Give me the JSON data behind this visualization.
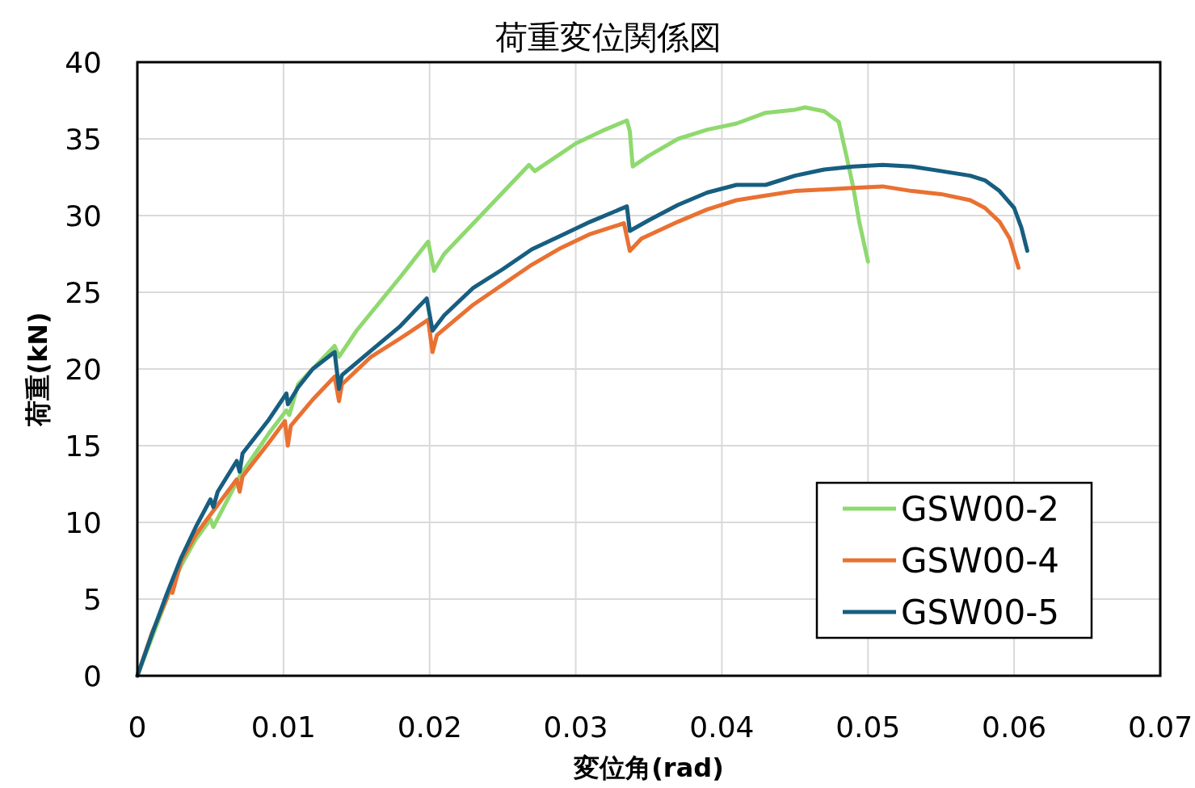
{
  "chart_data": {
    "type": "line",
    "title": "荷重変位関係図",
    "xlabel": "変位角(rad)",
    "ylabel": "荷重(kN)",
    "xlim": [
      0,
      0.07
    ],
    "xticks": [
      0,
      0.01,
      0.02,
      0.03,
      0.04,
      0.05,
      0.06,
      0.07
    ],
    "ylim": [
      0,
      40
    ],
    "yticks": [
      0,
      5,
      10,
      15,
      20,
      25,
      30,
      35,
      40
    ],
    "grid": true,
    "legend": "bottom right",
    "marker": "none",
    "line_style": "solid",
    "series": [
      {
        "name": "GSW00-2",
        "color": "#8fd96f",
        "x": [
          0,
          0.001,
          0.002,
          0.003,
          0.004,
          0.005,
          0.0052,
          0.007,
          0.009,
          0.0102,
          0.0104,
          0.011,
          0.0135,
          0.0138,
          0.015,
          0.018,
          0.0199,
          0.0203,
          0.021,
          0.023,
          0.025,
          0.0268,
          0.0272,
          0.03,
          0.032,
          0.0335,
          0.0337,
          0.0339,
          0.035,
          0.037,
          0.039,
          0.041,
          0.043,
          0.045,
          0.0457,
          0.047,
          0.048,
          0.0485,
          0.049,
          0.0494,
          0.05
        ],
        "values": [
          0,
          2.5,
          5,
          7.2,
          8.9,
          10.2,
          9.7,
          13,
          15.8,
          17.3,
          17,
          19,
          21.5,
          20.8,
          22.5,
          26,
          28.3,
          26.4,
          27.5,
          29.5,
          31.5,
          33.3,
          32.9,
          34.7,
          35.6,
          36.2,
          35.5,
          33.2,
          33.9,
          35,
          35.6,
          36,
          36.7,
          36.9,
          37.05,
          36.8,
          36.1,
          34,
          31.8,
          29.6,
          27
        ]
      },
      {
        "name": "GSW00-4",
        "color": "#e97132",
        "x": [
          0,
          0.001,
          0.002,
          0.0023,
          0.0024,
          0.003,
          0.004,
          0.005,
          0.0068,
          0.007,
          0.0072,
          0.009,
          0.0101,
          0.0103,
          0.0105,
          0.012,
          0.0135,
          0.0138,
          0.014,
          0.016,
          0.018,
          0.0199,
          0.0202,
          0.0205,
          0.023,
          0.025,
          0.027,
          0.029,
          0.031,
          0.0333,
          0.0337,
          0.0345,
          0.037,
          0.039,
          0.041,
          0.043,
          0.045,
          0.047,
          0.049,
          0.051,
          0.053,
          0.055,
          0.057,
          0.058,
          0.059,
          0.0597,
          0.0603
        ],
        "values": [
          0,
          2.8,
          5,
          6,
          5.4,
          7.5,
          9.2,
          10.5,
          12.8,
          12,
          13,
          15.2,
          16.6,
          15,
          16.3,
          18,
          19.5,
          17.9,
          19,
          20.8,
          22,
          23.2,
          21.1,
          22.2,
          24.2,
          25.5,
          26.8,
          27.9,
          28.8,
          29.5,
          27.7,
          28.5,
          29.6,
          30.4,
          31,
          31.3,
          31.6,
          31.7,
          31.8,
          31.9,
          31.6,
          31.4,
          31,
          30.5,
          29.6,
          28.5,
          26.6
        ]
      },
      {
        "name": "GSW00-5",
        "color": "#175e80",
        "x": [
          0,
          0.001,
          0.002,
          0.003,
          0.004,
          0.005,
          0.0052,
          0.0055,
          0.0068,
          0.007,
          0.0072,
          0.009,
          0.0102,
          0.0103,
          0.011,
          0.012,
          0.0135,
          0.0138,
          0.014,
          0.016,
          0.018,
          0.0198,
          0.0202,
          0.021,
          0.023,
          0.025,
          0.027,
          0.029,
          0.031,
          0.033,
          0.0335,
          0.0337,
          0.035,
          0.037,
          0.039,
          0.041,
          0.043,
          0.045,
          0.047,
          0.049,
          0.051,
          0.053,
          0.055,
          0.057,
          0.058,
          0.059,
          0.06,
          0.0605,
          0.0609
        ],
        "values": [
          0,
          2.7,
          5.3,
          7.7,
          9.7,
          11.5,
          11,
          12,
          14,
          13.3,
          14.5,
          16.7,
          18.4,
          17.7,
          18.8,
          20,
          21.1,
          18.7,
          19.6,
          21.2,
          22.8,
          24.6,
          22.5,
          23.5,
          25.3,
          26.5,
          27.8,
          28.7,
          29.6,
          30.4,
          30.6,
          29,
          29.7,
          30.7,
          31.5,
          32,
          32,
          32.6,
          33,
          33.2,
          33.3,
          33.2,
          32.9,
          32.6,
          32.3,
          31.6,
          30.5,
          29.2,
          27.7
        ]
      }
    ]
  }
}
